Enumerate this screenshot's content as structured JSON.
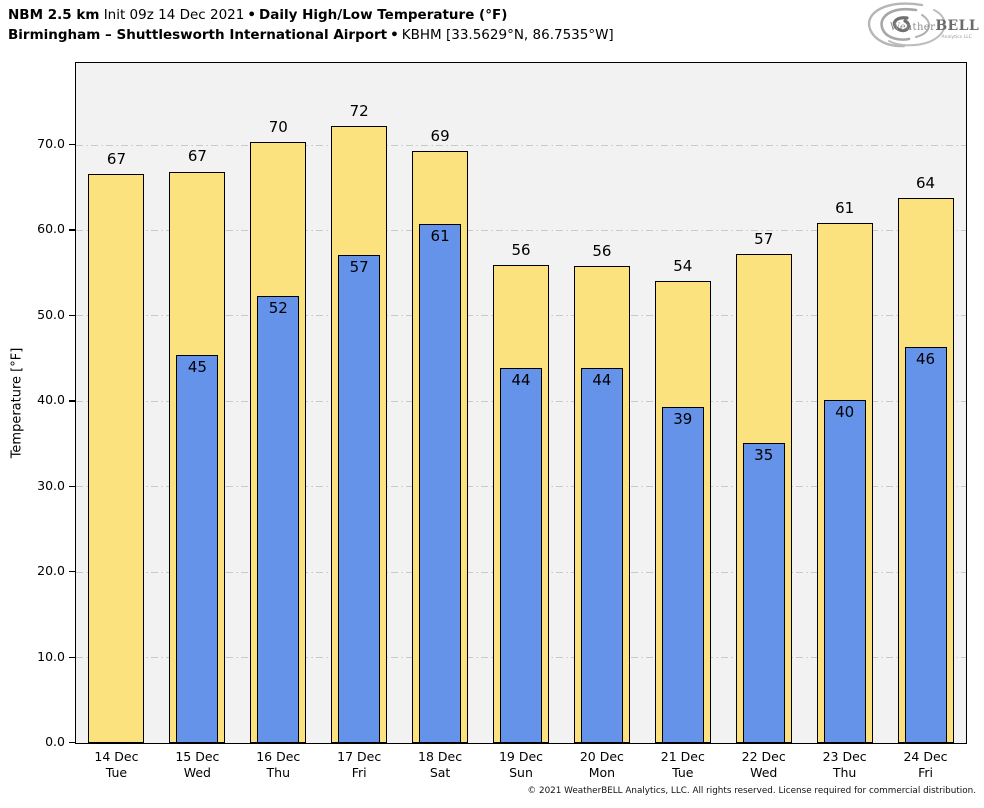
{
  "header": {
    "model": "NBM 2.5 km",
    "init": "Init 09z 14 Dec 2021",
    "bullet": "•",
    "product": "Daily High/Low Temperature (°F)",
    "location": "Birmingham – Shuttlesworth International Airport",
    "station": "KBHM [33.5629°N, 86.7535°W]"
  },
  "logo": {
    "name_left": "Weather",
    "name_right": "BELL",
    "subtitle": "Analytics LLC"
  },
  "footer": {
    "copyright": "© 2021 WeatherBELL Analytics, LLC. All rights reserved. License required for commercial distribution."
  },
  "colors": {
    "high_bar": "#FCE27F",
    "low_bar": "#6593EA",
    "bar_edge": "#000000",
    "plot_bg": "#F2F2F2",
    "gridline": "#C9C9C9"
  },
  "chart_data": {
    "type": "bar",
    "title": "Daily High/Low Temperature (°F)",
    "subtitle": "Birmingham – Shuttlesworth International Airport (KBHM)",
    "xlabel": "",
    "ylabel": "Temperature [°F]",
    "ylim": [
      0,
      79.6
    ],
    "yticks": [
      0,
      10,
      20,
      30,
      40,
      50,
      60,
      70
    ],
    "ytick_labels": [
      "0.0",
      "10.0",
      "20.0",
      "30.0",
      "40.0",
      "50.0",
      "60.0",
      "70.0"
    ],
    "grid": "horizontal dash-dot",
    "legend": "none",
    "categories": [
      {
        "date": "14 Dec",
        "day": "Tue"
      },
      {
        "date": "15 Dec",
        "day": "Wed"
      },
      {
        "date": "16 Dec",
        "day": "Thu"
      },
      {
        "date": "17 Dec",
        "day": "Fri"
      },
      {
        "date": "18 Dec",
        "day": "Sat"
      },
      {
        "date": "19 Dec",
        "day": "Sun"
      },
      {
        "date": "20 Dec",
        "day": "Mon"
      },
      {
        "date": "21 Dec",
        "day": "Tue"
      },
      {
        "date": "22 Dec",
        "day": "Wed"
      },
      {
        "date": "23 Dec",
        "day": "Thu"
      },
      {
        "date": "24 Dec",
        "day": "Fri"
      }
    ],
    "series": [
      {
        "name": "High",
        "values": [
          67,
          67,
          70,
          72,
          69,
          56,
          56,
          54,
          57,
          61,
          64
        ],
        "values_exact": [
          66.6,
          66.9,
          70.4,
          72.2,
          69.3,
          55.9,
          55.8,
          54.1,
          57.2,
          60.9,
          63.8
        ]
      },
      {
        "name": "Low",
        "values": [
          null,
          45,
          52,
          57,
          61,
          44,
          44,
          39,
          35,
          40,
          46
        ],
        "values_exact": [
          null,
          45.4,
          52.3,
          57.1,
          60.7,
          43.9,
          43.9,
          39.3,
          35.1,
          40.1,
          46.4
        ]
      }
    ]
  }
}
